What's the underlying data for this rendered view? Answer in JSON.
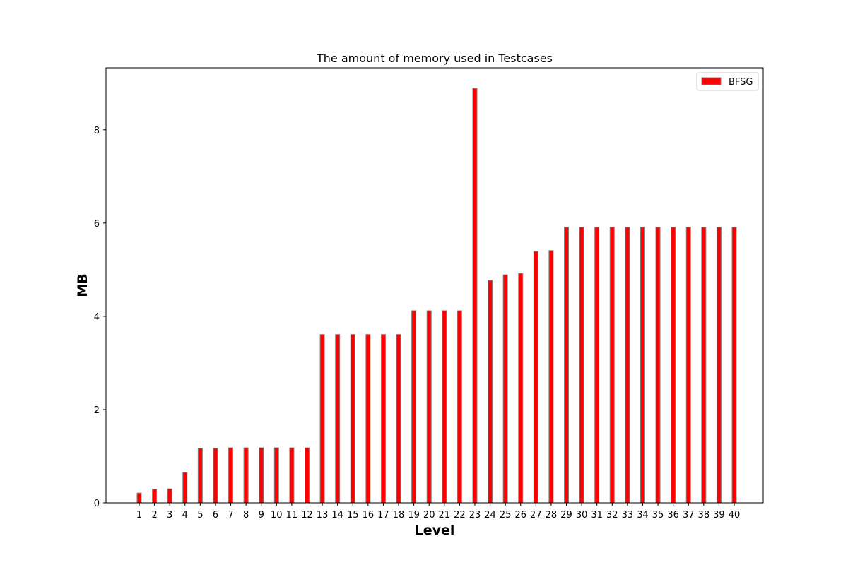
{
  "chart_data": {
    "type": "bar",
    "title": "The amount of memory used in  Testcases",
    "xlabel": "Level",
    "ylabel": "MB",
    "categories": [
      "1",
      "2",
      "3",
      "4",
      "5",
      "6",
      "7",
      "8",
      "9",
      "10",
      "11",
      "12",
      "13",
      "14",
      "15",
      "16",
      "17",
      "18",
      "19",
      "20",
      "21",
      "22",
      "23",
      "24",
      "25",
      "26",
      "27",
      "28",
      "29",
      "30",
      "31",
      "32",
      "33",
      "34",
      "35",
      "36",
      "37",
      "38",
      "39",
      "40"
    ],
    "series": [
      {
        "name": "BFSG",
        "color": "#ff0000",
        "edge_color": "#808080",
        "values": [
          0.21,
          0.29,
          0.3,
          0.65,
          1.17,
          1.17,
          1.18,
          1.18,
          1.18,
          1.18,
          1.18,
          1.18,
          3.61,
          3.61,
          3.61,
          3.61,
          3.61,
          3.61,
          4.12,
          4.12,
          4.12,
          4.12,
          8.89,
          4.77,
          4.89,
          4.92,
          5.39,
          5.41,
          5.91,
          5.91,
          5.91,
          5.91,
          5.91,
          5.91,
          5.91,
          5.91,
          5.91,
          5.91,
          5.91,
          5.91
        ]
      }
    ],
    "yticks": [
      0,
      2,
      4,
      6,
      8
    ],
    "ylim": [
      0,
      9.33
    ],
    "grid": false,
    "legend_position": "top-right"
  }
}
